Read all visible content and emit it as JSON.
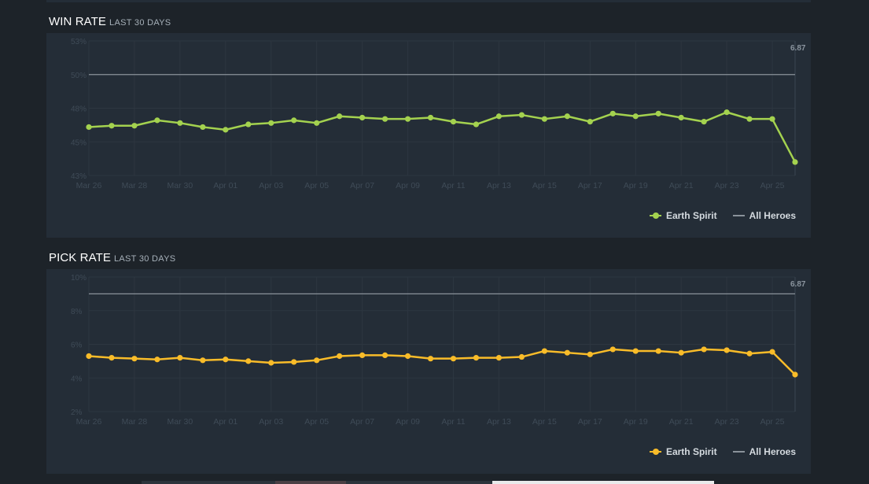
{
  "colors": {
    "background": "#1d2329",
    "panel": "#242d37",
    "grid": "#2d3640",
    "axis_text": "#3f4b57",
    "baseline": "#8a929a",
    "version_text": "#8a949e",
    "win_series": "#a4d24f",
    "pick_series": "#f9bc29"
  },
  "chart_data": [
    {
      "type": "line",
      "title": "WIN RATE",
      "subtitle": "LAST 30 DAYS",
      "ylabel": "",
      "xlabel": "",
      "ylim": [
        43,
        53
      ],
      "yticks": [
        "53%",
        "50%",
        "48%",
        "45%",
        "43%"
      ],
      "ytick_values": [
        53,
        50.5,
        48,
        45.5,
        43
      ],
      "x": [
        "Mar 26",
        "Mar 27",
        "Mar 28",
        "Mar 29",
        "Mar 30",
        "Mar 31",
        "Apr 01",
        "Apr 02",
        "Apr 03",
        "Apr 04",
        "Apr 05",
        "Apr 06",
        "Apr 07",
        "Apr 08",
        "Apr 09",
        "Apr 10",
        "Apr 11",
        "Apr 12",
        "Apr 13",
        "Apr 14",
        "Apr 15",
        "Apr 16",
        "Apr 17",
        "Apr 18",
        "Apr 19",
        "Apr 20",
        "Apr 21",
        "Apr 22",
        "Apr 23",
        "Apr 24",
        "Apr 25",
        "Apr 26"
      ],
      "xtick_labels": [
        "Mar 26",
        "Mar 28",
        "Mar 30",
        "Apr 01",
        "Apr 03",
        "Apr 05",
        "Apr 07",
        "Apr 09",
        "Apr 11",
        "Apr 13",
        "Apr 15",
        "Apr 17",
        "Apr 19",
        "Apr 21",
        "Apr 23",
        "Apr 25"
      ],
      "series": [
        {
          "name": "Earth Spirit",
          "color": "#a4d24f",
          "values": [
            46.6,
            46.7,
            46.7,
            47.1,
            46.9,
            46.6,
            46.4,
            46.8,
            46.9,
            47.1,
            46.9,
            47.4,
            47.3,
            47.2,
            47.2,
            47.3,
            47.0,
            46.8,
            47.4,
            47.5,
            47.2,
            47.4,
            47.0,
            47.6,
            47.4,
            47.6,
            47.3,
            47.0,
            47.7,
            47.2,
            47.2,
            44.0
          ]
        },
        {
          "name": "All Heroes",
          "color": "#8a929a",
          "values": [
            50.5,
            50.5,
            50.5,
            50.5,
            50.5,
            50.5,
            50.5,
            50.5,
            50.5,
            50.5,
            50.5,
            50.5,
            50.5,
            50.5,
            50.5,
            50.5,
            50.5,
            50.5,
            50.5,
            50.5,
            50.5,
            50.5,
            50.5,
            50.5,
            50.5,
            50.5,
            50.5,
            50.5,
            50.5,
            50.5,
            50.5,
            50.5
          ]
        }
      ],
      "annotations": [
        {
          "label": "6.87",
          "at_x": "Apr 26"
        }
      ],
      "legend": "bottom-right",
      "grid": true
    },
    {
      "type": "line",
      "title": "PICK RATE",
      "subtitle": "LAST 30 DAYS",
      "ylabel": "",
      "xlabel": "",
      "ylim": [
        2,
        10
      ],
      "yticks": [
        "10%",
        "8%",
        "6%",
        "4%",
        "2%"
      ],
      "ytick_values": [
        10,
        8,
        6,
        4,
        2
      ],
      "x": [
        "Mar 26",
        "Mar 27",
        "Mar 28",
        "Mar 29",
        "Mar 30",
        "Mar 31",
        "Apr 01",
        "Apr 02",
        "Apr 03",
        "Apr 04",
        "Apr 05",
        "Apr 06",
        "Apr 07",
        "Apr 08",
        "Apr 09",
        "Apr 10",
        "Apr 11",
        "Apr 12",
        "Apr 13",
        "Apr 14",
        "Apr 15",
        "Apr 16",
        "Apr 17",
        "Apr 18",
        "Apr 19",
        "Apr 20",
        "Apr 21",
        "Apr 22",
        "Apr 23",
        "Apr 24",
        "Apr 25",
        "Apr 26"
      ],
      "xtick_labels": [
        "Mar 26",
        "Mar 28",
        "Mar 30",
        "Apr 01",
        "Apr 03",
        "Apr 05",
        "Apr 07",
        "Apr 09",
        "Apr 11",
        "Apr 13",
        "Apr 15",
        "Apr 17",
        "Apr 19",
        "Apr 21",
        "Apr 23",
        "Apr 25"
      ],
      "series": [
        {
          "name": "Earth Spirit",
          "color": "#f9bc29",
          "values": [
            5.3,
            5.2,
            5.15,
            5.1,
            5.2,
            5.05,
            5.1,
            5.0,
            4.9,
            4.95,
            5.05,
            5.3,
            5.35,
            5.35,
            5.3,
            5.15,
            5.15,
            5.2,
            5.2,
            5.25,
            5.6,
            5.5,
            5.4,
            5.7,
            5.6,
            5.6,
            5.5,
            5.7,
            5.65,
            5.45,
            5.55,
            4.2
          ]
        },
        {
          "name": "All Heroes",
          "color": "#8a929a",
          "values": [
            9.0,
            9.0,
            9.0,
            9.0,
            9.0,
            9.0,
            9.0,
            9.0,
            9.0,
            9.0,
            9.0,
            9.0,
            9.0,
            9.0,
            9.0,
            9.0,
            9.0,
            9.0,
            9.0,
            9.0,
            9.0,
            9.0,
            9.0,
            9.0,
            9.0,
            9.0,
            9.0,
            9.0,
            9.0,
            9.0,
            9.0,
            9.0
          ]
        }
      ],
      "annotations": [
        {
          "label": "6.87",
          "at_x": "Apr 26"
        }
      ],
      "legend": "bottom-right",
      "grid": true
    }
  ]
}
